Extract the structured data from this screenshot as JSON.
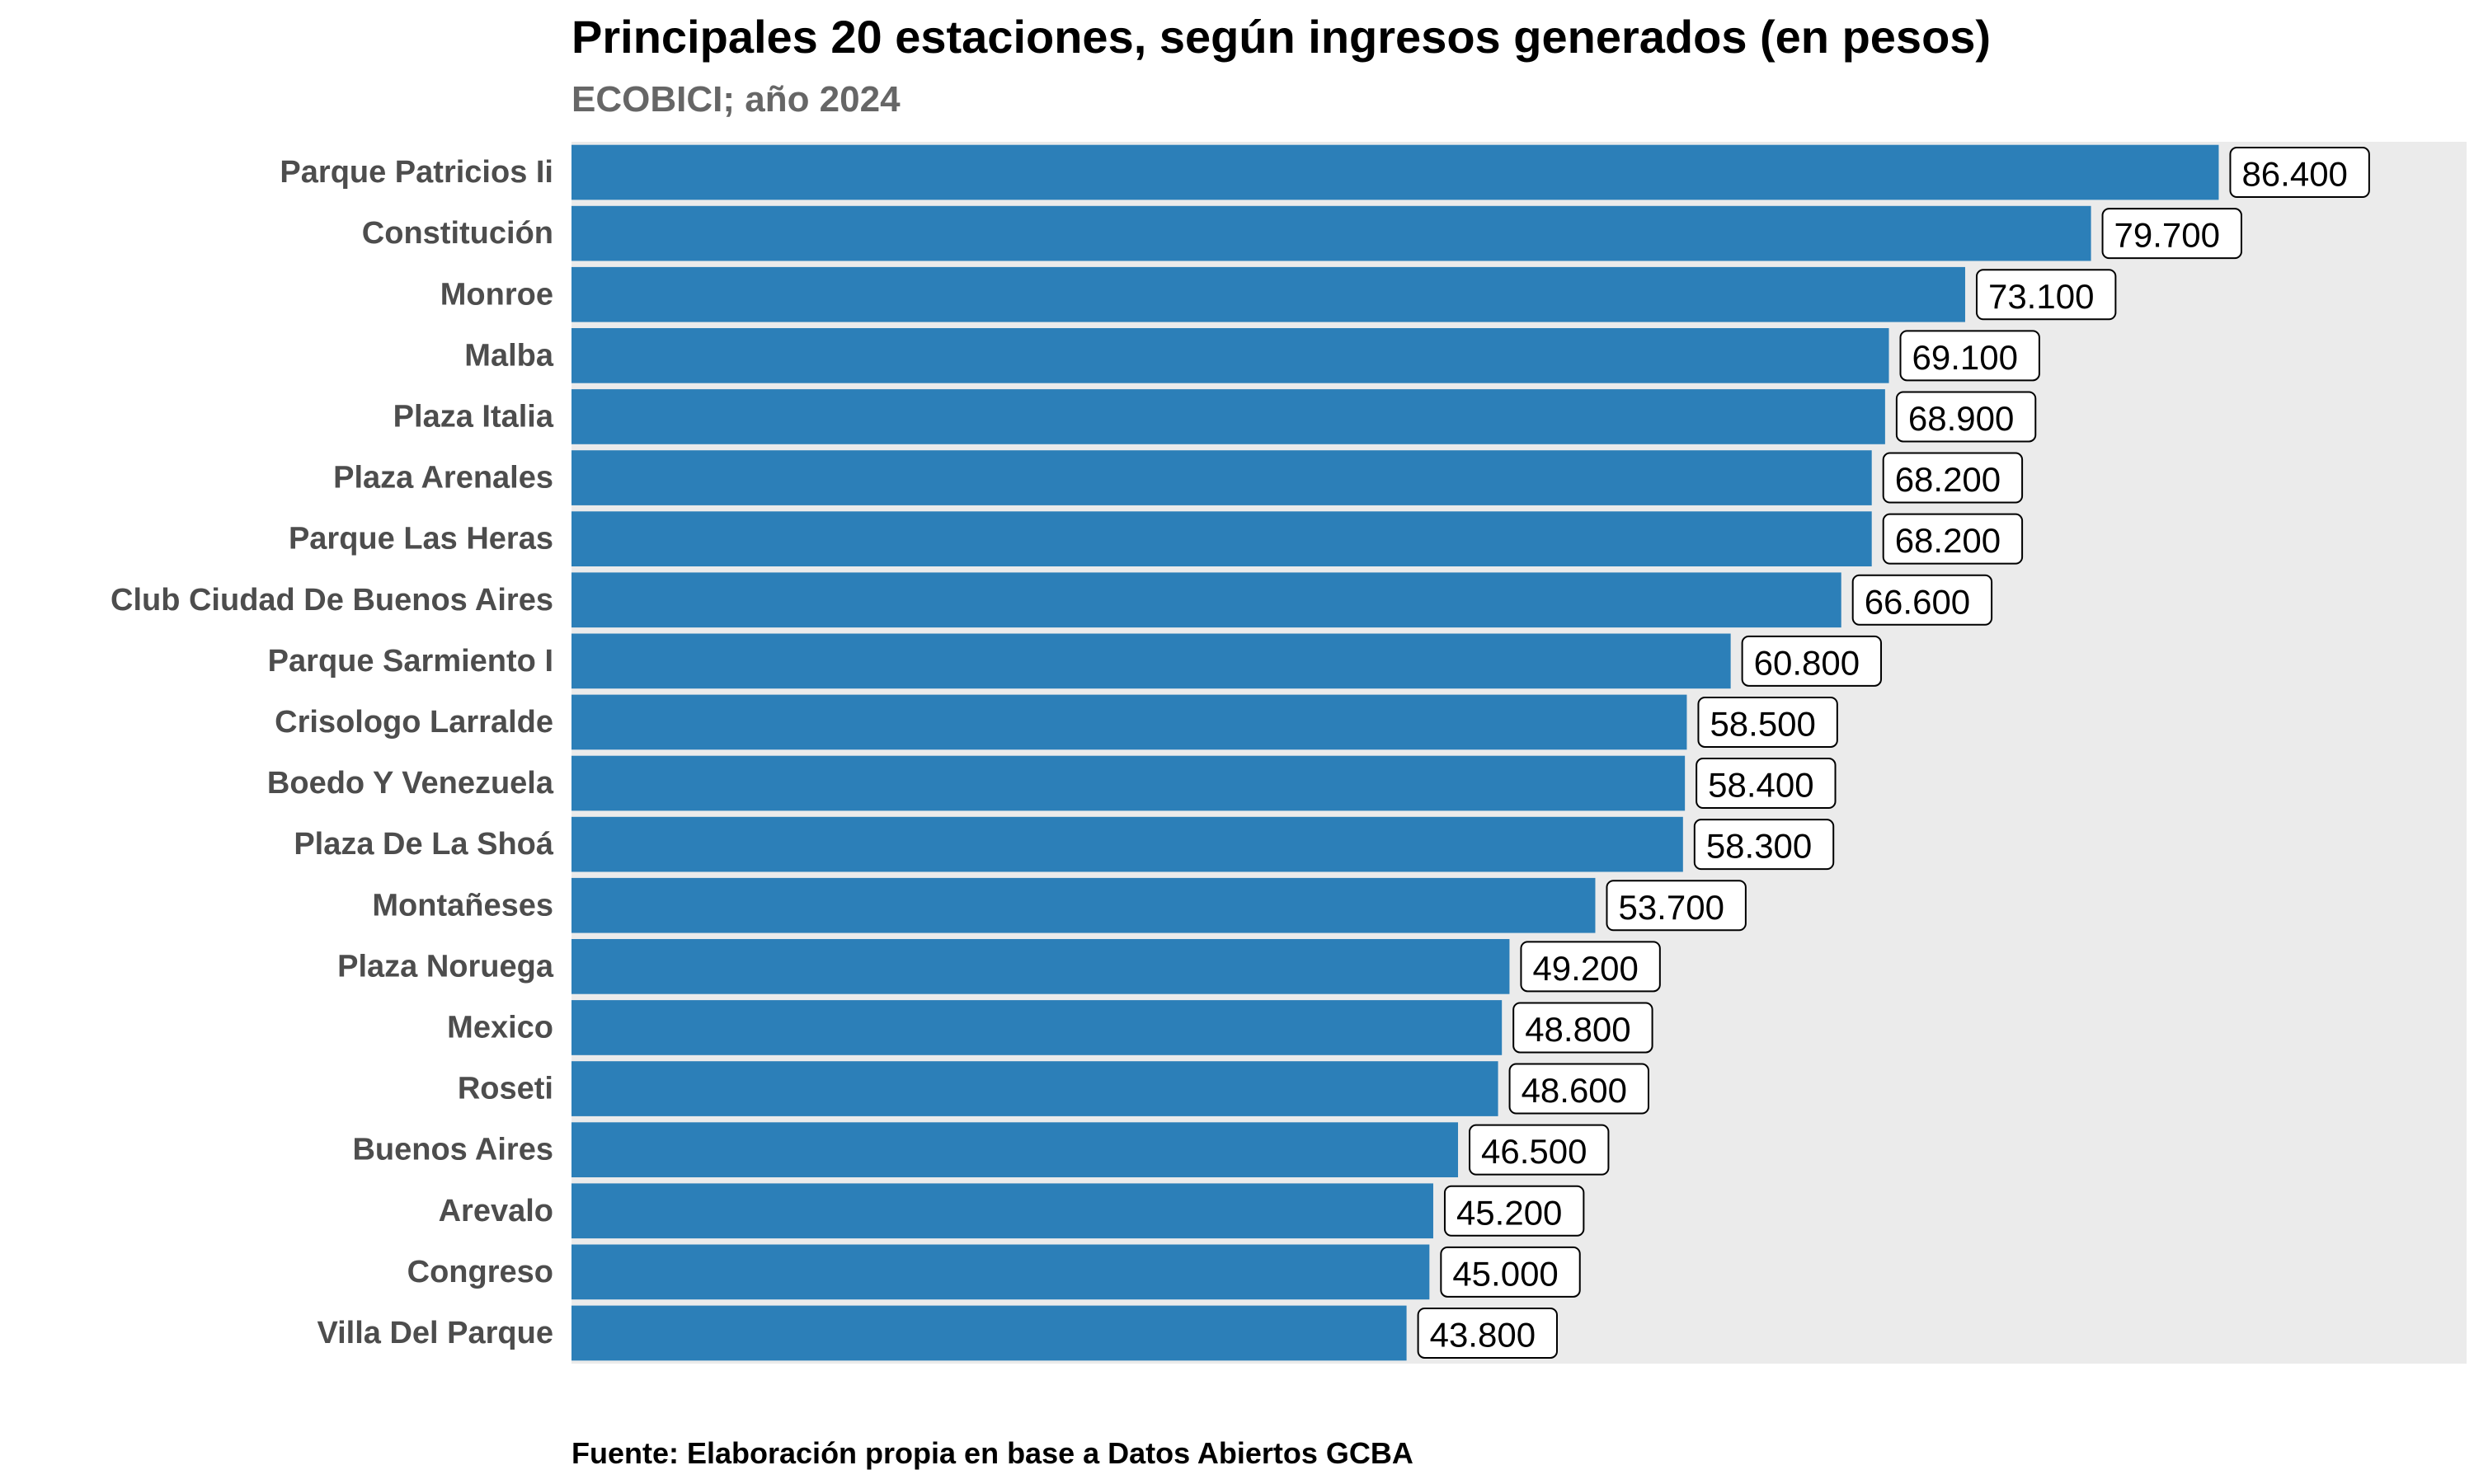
{
  "chart_data": {
    "type": "bar",
    "orientation": "horizontal",
    "title": "Principales 20 estaciones, según ingresos generados (en pesos)",
    "subtitle": "ECOBICI; año 2024",
    "caption": "Fuente: Elaboración propia en base a Datos Abiertos GCBA",
    "categories": [
      "Parque Patricios Ii",
      "Constitución",
      "Monroe",
      "Malba",
      "Plaza Italia",
      "Plaza Arenales",
      "Parque Las Heras",
      "Club Ciudad De Buenos Aires",
      "Parque Sarmiento I",
      "Crisologo Larralde",
      "Boedo Y Venezuela",
      "Plaza De La Shoá",
      "Montañeses",
      "Plaza Noruega",
      "Mexico",
      "Roseti",
      "Buenos Aires",
      "Arevalo",
      "Congreso",
      "Villa Del Parque"
    ],
    "values": [
      86400,
      79700,
      73100,
      69100,
      68900,
      68200,
      68200,
      66600,
      60800,
      58500,
      58400,
      58300,
      53700,
      49200,
      48800,
      48600,
      46500,
      45200,
      45000,
      43800
    ],
    "value_labels": [
      "86.400",
      "79.700",
      "73.100",
      "69.100",
      "68.900",
      "68.200",
      "68.200",
      "66.600",
      "60.800",
      "58.500",
      "58.400",
      "58.300",
      "53.700",
      "49.200",
      "48.800",
      "48.600",
      "46.500",
      "45.200",
      "45.000",
      "43.800"
    ],
    "xlim": [
      0,
      99400
    ],
    "xaxis_visible": false,
    "grid": false,
    "legend": "none",
    "bar_color": "#2c7fb8",
    "panel_background": "#ebebeb",
    "label_box_fill": "#ffffff",
    "label_box_stroke": "#000000"
  }
}
